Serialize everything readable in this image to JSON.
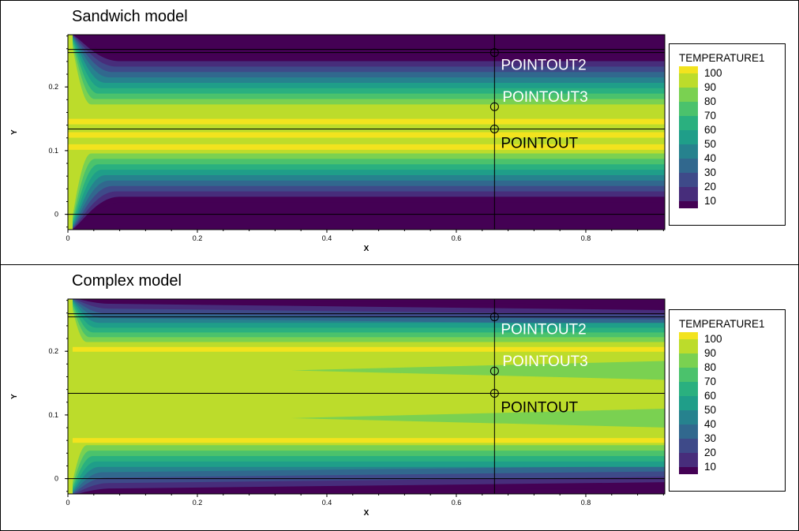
{
  "chart_data": [
    {
      "type": "heatmap",
      "title": "Sandwich model",
      "xlabel": "X",
      "ylabel": "Y",
      "xlim": [
        0,
        0.922
      ],
      "ylim": [
        -0.024,
        0.282
      ],
      "xticks": [
        "0",
        "0.2",
        "0.4",
        "0.6",
        "0.8"
      ],
      "yticks": [
        "0",
        "0.1",
        "0.2"
      ],
      "legend": {
        "title": "TEMPERATURE1",
        "levels": [
          "100",
          "90",
          "80",
          "70",
          "60",
          "50",
          "40",
          "30",
          "20",
          "10"
        ],
        "placement": "right"
      },
      "probe_line_x": 0.659,
      "horizontal_lines_y": [
        0.259,
        0.254,
        0.134,
        0.0
      ],
      "points": [
        {
          "label": "POINTOUT2",
          "x": 0.659,
          "y": 0.254
        },
        {
          "label": "POINTOUT3",
          "x": 0.659,
          "y": 0.169
        },
        {
          "label": "POINTOUT",
          "x": 0.659,
          "y": 0.134
        }
      ]
    },
    {
      "type": "heatmap",
      "title": "Complex model",
      "xlabel": "X",
      "ylabel": "Y",
      "xlim": [
        0,
        0.922
      ],
      "ylim": [
        -0.024,
        0.282
      ],
      "xticks": [
        "0",
        "0.2",
        "0.4",
        "0.6",
        "0.8"
      ],
      "yticks": [
        "0",
        "0.1",
        "0.2"
      ],
      "legend": {
        "title": "TEMPERATURE1",
        "levels": [
          "100",
          "90",
          "80",
          "70",
          "60",
          "50",
          "40",
          "30",
          "20",
          "10"
        ],
        "placement": "right"
      },
      "probe_line_x": 0.659,
      "horizontal_lines_y": [
        0.259,
        0.254,
        0.134,
        0.0
      ],
      "points": [
        {
          "label": "POINTOUT2",
          "x": 0.659,
          "y": 0.254
        },
        {
          "label": "POINTOUT3",
          "x": 0.659,
          "y": 0.169
        },
        {
          "label": "POINTOUT",
          "x": 0.659,
          "y": 0.134
        }
      ]
    }
  ],
  "colors": {
    "palette_100_to_10": [
      "#f2e31e",
      "#bcdc2b",
      "#7ad151",
      "#4bc26c",
      "#2ab07f",
      "#1f9e89",
      "#26828e",
      "#31688e",
      "#3e4a89",
      "#472d7b",
      "#440154"
    ],
    "frame": "#000000",
    "point_label_on_dark": "#ffffff",
    "point_label_on_light": "#000000"
  }
}
